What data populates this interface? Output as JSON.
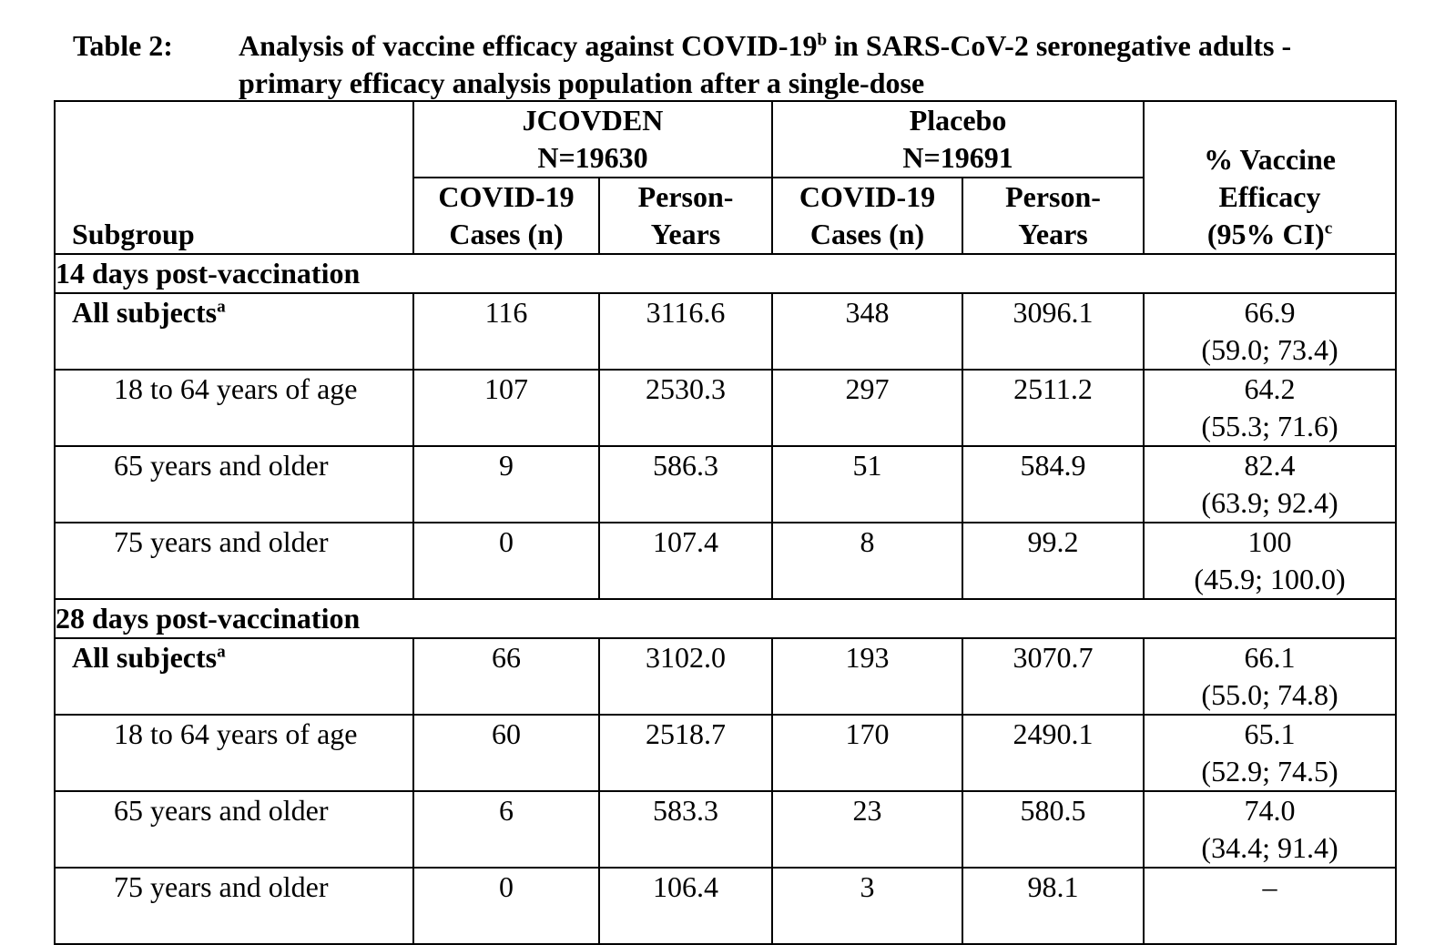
{
  "caption": {
    "label": "Table 2:",
    "text": "Analysis of vaccine efficacy against COVID-19",
    "text_sup": "b",
    "text_rest": " in SARS-CoV-2 seronegative adults - primary efficacy analysis population after a single-dose"
  },
  "header": {
    "subgroup": "Subgroup",
    "group1_name": "JCOVDEN",
    "group1_n": "N=19630",
    "group2_name": "Placebo",
    "group2_n": "N=19691",
    "cases_line1": "COVID-19",
    "cases_line2": "Cases (n)",
    "py_line1": "Person-",
    "py_line2": "Years",
    "ve_line1": "% Vaccine",
    "ve_line2": "Efficacy",
    "ve_line3": "(95% CI)",
    "ve_sup": "c"
  },
  "sections": [
    {
      "title": "14 days post-vaccination",
      "rows": [
        {
          "label": "All subjects",
          "sup": "a",
          "jc_cases": "116",
          "jc_py": "3116.6",
          "pl_cases": "348",
          "pl_py": "3096.1",
          "ve": "66.9",
          "ci": "(59.0; 73.4)"
        },
        {
          "label": "18 to 64 years of age",
          "sup": "",
          "jc_cases": "107",
          "jc_py": "2530.3",
          "pl_cases": "297",
          "pl_py": "2511.2",
          "ve": "64.2",
          "ci": "(55.3; 71.6)"
        },
        {
          "label": "65 years and older",
          "sup": "",
          "jc_cases": "9",
          "jc_py": "586.3",
          "pl_cases": "51",
          "pl_py": "584.9",
          "ve": "82.4",
          "ci": "(63.9; 92.4)"
        },
        {
          "label": "75 years and older",
          "sup": "",
          "jc_cases": "0",
          "jc_py": "107.4",
          "pl_cases": "8",
          "pl_py": "99.2",
          "ve": "100",
          "ci": "(45.9; 100.0)"
        }
      ]
    },
    {
      "title": "28 days post-vaccination",
      "rows": [
        {
          "label": "All subjects",
          "sup": "a",
          "jc_cases": "66",
          "jc_py": "3102.0",
          "pl_cases": "193",
          "pl_py": "3070.7",
          "ve": "66.1",
          "ci": "(55.0; 74.8)"
        },
        {
          "label": "18 to 64 years of age",
          "sup": "",
          "jc_cases": "60",
          "jc_py": "2518.7",
          "pl_cases": "170",
          "pl_py": "2490.1",
          "ve": "65.1",
          "ci": "(52.9; 74.5)"
        },
        {
          "label": "65 years and older",
          "sup": "",
          "jc_cases": "6",
          "jc_py": "583.3",
          "pl_cases": "23",
          "pl_py": "580.5",
          "ve": "74.0",
          "ci": "(34.4; 91.4)"
        },
        {
          "label": "75 years and older",
          "sup": "",
          "jc_cases": "0",
          "jc_py": "106.4",
          "pl_cases": "3",
          "pl_py": "98.1",
          "ve": "–",
          "ci": ""
        }
      ]
    }
  ]
}
